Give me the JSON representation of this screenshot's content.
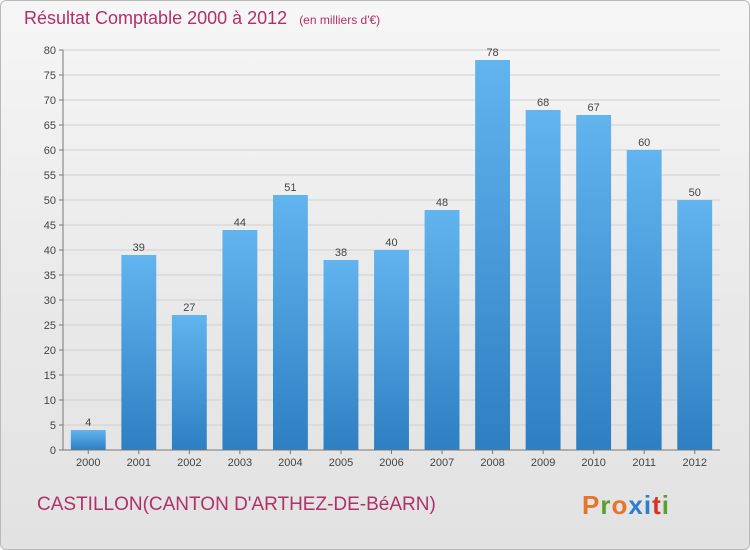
{
  "header": {
    "title": "Résultat Comptable 2000 à 2012",
    "subtitle": "(en milliers d'€)"
  },
  "commune": "CASTILLON(CANTON D'ARTHEZ-DE-BéARN)",
  "logo": {
    "text": "Proxiti",
    "colors": [
      "#e8742a",
      "#5aa02c",
      "#e8742a",
      "#2a7fd0",
      "#2a7fd0",
      "#d2342a",
      "#5aa02c"
    ]
  },
  "colors": {
    "bar_light": "#62b4ef",
    "bar_dark": "#2e7fc2",
    "title": "#b03068"
  },
  "chart_data": {
    "type": "bar",
    "title": "Résultat Comptable 2000 à 2012",
    "ylabel": "",
    "xlabel": "",
    "categories": [
      "2000",
      "2001",
      "2002",
      "2003",
      "2004",
      "2005",
      "2006",
      "2007",
      "2008",
      "2009",
      "2010",
      "2011",
      "2012"
    ],
    "values": [
      4,
      39,
      27,
      44,
      51,
      38,
      40,
      48,
      78,
      68,
      67,
      60,
      50
    ],
    "ylim": [
      0,
      80
    ],
    "yticks": [
      0,
      5,
      10,
      15,
      20,
      25,
      30,
      35,
      40,
      45,
      50,
      55,
      60,
      65,
      70,
      75,
      80
    ],
    "grid": true,
    "data_labels": true
  }
}
